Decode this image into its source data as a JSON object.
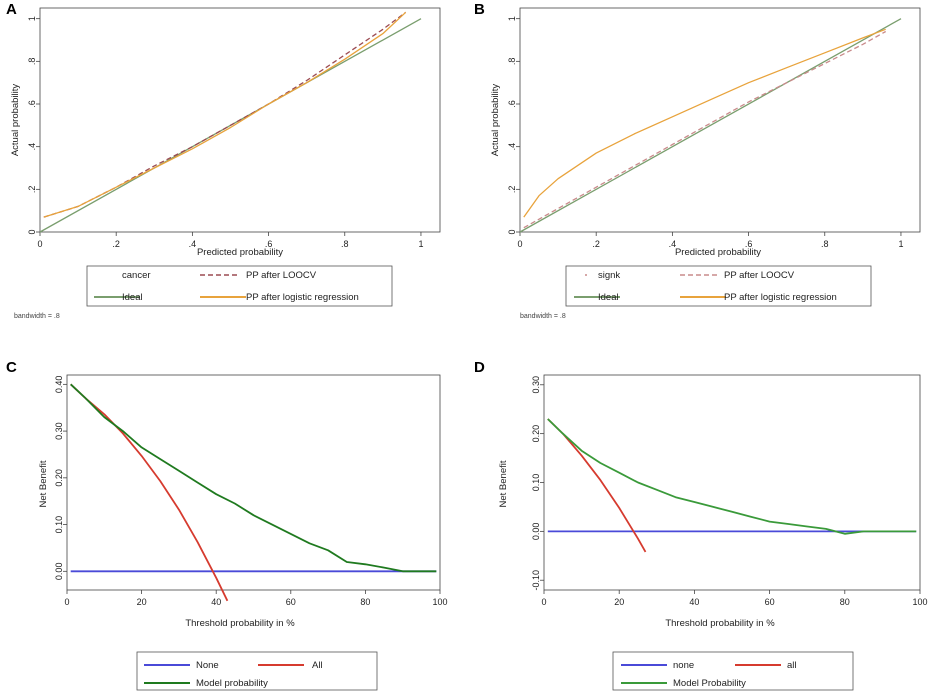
{
  "chart_data": [
    {
      "panel": "A",
      "type": "line",
      "xlabel": "Predicted probability",
      "ylabel": "Actual probability",
      "xlim": [
        0,
        1.05
      ],
      "ylim": [
        0,
        1.05
      ],
      "xticks": [
        0,
        0.2,
        0.4,
        0.6,
        0.8,
        1
      ],
      "xtick_labels": [
        "0",
        ".2",
        ".4",
        ".6",
        ".8",
        "1"
      ],
      "yticks": [
        0,
        0.2,
        0.4,
        0.6,
        0.8,
        1
      ],
      "ytick_labels": [
        "0",
        ".2",
        ".4",
        ".6",
        ".8",
        "1"
      ],
      "note": "bandwidth = .8",
      "legend": [
        "cancer",
        "PP after LOOCV",
        "Ideal",
        "PP after logistic regression"
      ],
      "series": [
        {
          "name": "Ideal",
          "color": "#7a9e6e",
          "style": "solid",
          "x": [
            0,
            1
          ],
          "y": [
            0,
            1
          ]
        },
        {
          "name": "PP after LOOCV",
          "color": "#9b4b52",
          "style": "dashed",
          "x": [
            0.01,
            0.1,
            0.2,
            0.3,
            0.4,
            0.5,
            0.6,
            0.7,
            0.8,
            0.9,
            0.96
          ],
          "y": [
            0.07,
            0.12,
            0.21,
            0.31,
            0.4,
            0.5,
            0.6,
            0.71,
            0.83,
            0.95,
            1.03
          ]
        },
        {
          "name": "PP after logistic regression",
          "color": "#e8a33c",
          "style": "solid",
          "x": [
            0.01,
            0.1,
            0.2,
            0.3,
            0.4,
            0.5,
            0.6,
            0.7,
            0.8,
            0.9,
            0.96
          ],
          "y": [
            0.07,
            0.12,
            0.21,
            0.3,
            0.39,
            0.49,
            0.6,
            0.7,
            0.81,
            0.93,
            1.03
          ]
        }
      ]
    },
    {
      "panel": "B",
      "type": "line",
      "xlabel": "Predicted probability",
      "ylabel": "Actual probability",
      "xlim": [
        0,
        1.05
      ],
      "ylim": [
        0,
        1.05
      ],
      "xticks": [
        0,
        0.2,
        0.4,
        0.6,
        0.8,
        1
      ],
      "xtick_labels": [
        "0",
        ".2",
        ".4",
        ".6",
        ".8",
        "1"
      ],
      "yticks": [
        0,
        0.2,
        0.4,
        0.6,
        0.8,
        1
      ],
      "ytick_labels": [
        "0",
        ".2",
        ".4",
        ".6",
        ".8",
        "1"
      ],
      "note": "bandwidth = .8",
      "legend": [
        "signk",
        "PP after LOOCV",
        "Ideal",
        "PP after logistic regression"
      ],
      "series": [
        {
          "name": "Ideal",
          "color": "#7a9e6e",
          "style": "solid",
          "x": [
            0,
            1
          ],
          "y": [
            0,
            1
          ]
        },
        {
          "name": "PP after LOOCV",
          "color": "#c98b8b",
          "style": "dashed",
          "x": [
            0.01,
            0.1,
            0.2,
            0.3,
            0.4,
            0.5,
            0.6,
            0.7,
            0.8,
            0.9,
            0.96
          ],
          "y": [
            0.02,
            0.11,
            0.21,
            0.31,
            0.41,
            0.51,
            0.61,
            0.7,
            0.79,
            0.88,
            0.94
          ]
        },
        {
          "name": "PP after logistic regression",
          "color": "#e8a33c",
          "style": "solid",
          "x": [
            0.01,
            0.05,
            0.1,
            0.2,
            0.3,
            0.4,
            0.5,
            0.6,
            0.7,
            0.8,
            0.9,
            0.96
          ],
          "y": [
            0.07,
            0.17,
            0.25,
            0.37,
            0.46,
            0.54,
            0.62,
            0.7,
            0.77,
            0.84,
            0.91,
            0.95
          ]
        }
      ]
    },
    {
      "panel": "C",
      "type": "line",
      "xlabel": "Threshold probability in %",
      "ylabel": "Net Benefit",
      "xlim": [
        0,
        100
      ],
      "ylim": [
        -0.04,
        0.42
      ],
      "xticks": [
        0,
        20,
        40,
        60,
        80,
        100
      ],
      "xtick_labels": [
        "0",
        "20",
        "40",
        "60",
        "80",
        "100"
      ],
      "yticks": [
        0,
        0.1,
        0.2,
        0.3,
        0.4
      ],
      "ytick_labels": [
        "0.00",
        "0.10",
        "0.20",
        "0.30",
        "0.40"
      ],
      "legend": [
        "None",
        "All",
        "Model probability"
      ],
      "series": [
        {
          "name": "None",
          "color": "#4a4ad8",
          "style": "solid",
          "x": [
            1,
            99
          ],
          "y": [
            0,
            0
          ]
        },
        {
          "name": "All",
          "color": "#d63b2f",
          "style": "solid",
          "x": [
            1,
            5,
            10,
            15,
            20,
            25,
            30,
            35,
            40,
            43
          ],
          "y": [
            0.4,
            0.37,
            0.336,
            0.295,
            0.247,
            0.193,
            0.132,
            0.063,
            -0.014,
            -0.063
          ]
        },
        {
          "name": "Model probability",
          "color": "#1f7a1f",
          "style": "solid",
          "x": [
            1,
            5,
            10,
            15,
            20,
            25,
            30,
            35,
            40,
            45,
            50,
            55,
            60,
            65,
            70,
            75,
            80,
            85,
            90,
            95,
            99
          ],
          "y": [
            0.4,
            0.37,
            0.33,
            0.3,
            0.265,
            0.24,
            0.215,
            0.19,
            0.165,
            0.145,
            0.12,
            0.1,
            0.08,
            0.06,
            0.045,
            0.02,
            0.015,
            0.008,
            0.0,
            0.0,
            0.0
          ]
        }
      ]
    },
    {
      "panel": "D",
      "type": "line",
      "xlabel": "Threshold probability in %",
      "ylabel": "Net Benefit",
      "xlim": [
        0,
        100
      ],
      "ylim": [
        -0.12,
        0.32
      ],
      "xticks": [
        0,
        20,
        40,
        60,
        80,
        100
      ],
      "xtick_labels": [
        "0",
        "20",
        "40",
        "60",
        "80",
        "100"
      ],
      "yticks": [
        -0.1,
        0,
        0.1,
        0.2,
        0.3
      ],
      "ytick_labels": [
        "-0.10",
        "0.00",
        "0.10",
        "0.20",
        "0.30"
      ],
      "legend": [
        "none",
        "all",
        "Model Probability"
      ],
      "series": [
        {
          "name": "none",
          "color": "#4a4ad8",
          "style": "solid",
          "x": [
            1,
            99
          ],
          "y": [
            0,
            0
          ]
        },
        {
          "name": "all",
          "color": "#d63b2f",
          "style": "solid",
          "x": [
            1,
            5,
            10,
            15,
            20,
            25,
            27
          ],
          "y": [
            0.23,
            0.2,
            0.155,
            0.105,
            0.048,
            -0.015,
            -0.042
          ]
        },
        {
          "name": "Model Probability",
          "color": "#3a9a3a",
          "style": "solid",
          "x": [
            1,
            5,
            10,
            15,
            20,
            25,
            30,
            35,
            40,
            45,
            50,
            55,
            60,
            65,
            70,
            75,
            80,
            85,
            90,
            95,
            99
          ],
          "y": [
            0.23,
            0.2,
            0.165,
            0.14,
            0.12,
            0.1,
            0.085,
            0.07,
            0.06,
            0.05,
            0.04,
            0.03,
            0.02,
            0.015,
            0.01,
            0.005,
            -0.005,
            0.0,
            0.0,
            0.0,
            0.0
          ]
        }
      ]
    }
  ]
}
